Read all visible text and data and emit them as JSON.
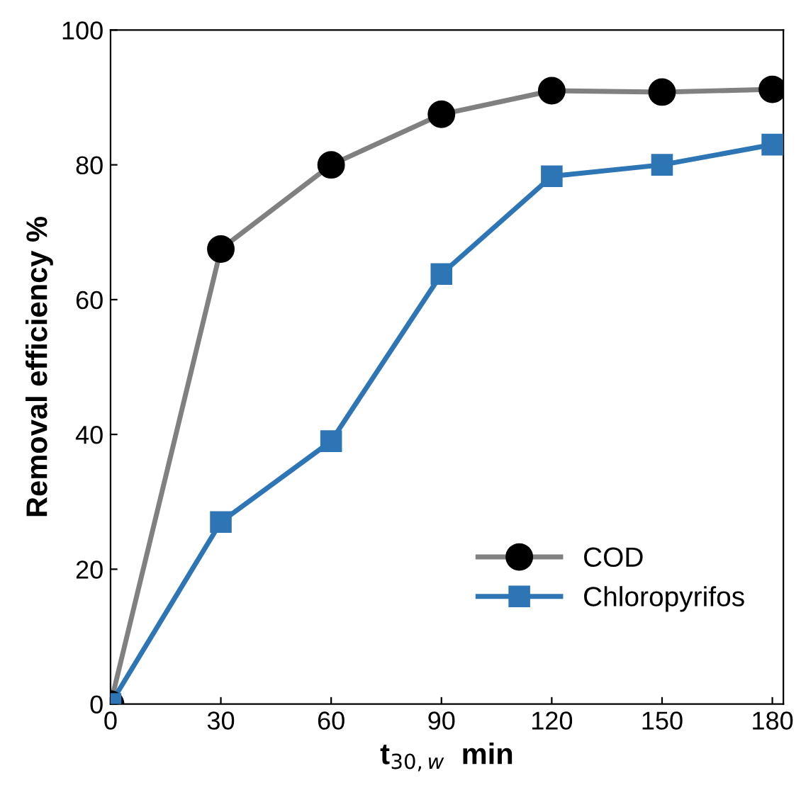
{
  "chart_data": {
    "type": "line",
    "xlabel": "t$_{30,w}$  min",
    "ylabel": "Removal efficiency %",
    "x": [
      0,
      30,
      60,
      90,
      120,
      150,
      180
    ],
    "series": [
      {
        "name": "COD",
        "color": "#000000",
        "marker": "circle",
        "values": [
          0,
          67.5,
          80,
          87.5,
          91,
          90.8,
          91.2
        ]
      },
      {
        "name": "Chloropyrifos",
        "color": "#2e75b6",
        "marker": "square",
        "values": [
          0,
          27,
          39,
          63.8,
          78.3,
          80,
          83
        ]
      }
    ],
    "xlim": [
      0,
      183
    ],
    "xticks": [
      0,
      30,
      60,
      90,
      120,
      150,
      180
    ],
    "ylim": [
      0,
      100
    ],
    "yticks": [
      0,
      20,
      40,
      60,
      80,
      100
    ],
    "grid": false,
    "legend": "bottom right",
    "line_style": "solid"
  }
}
